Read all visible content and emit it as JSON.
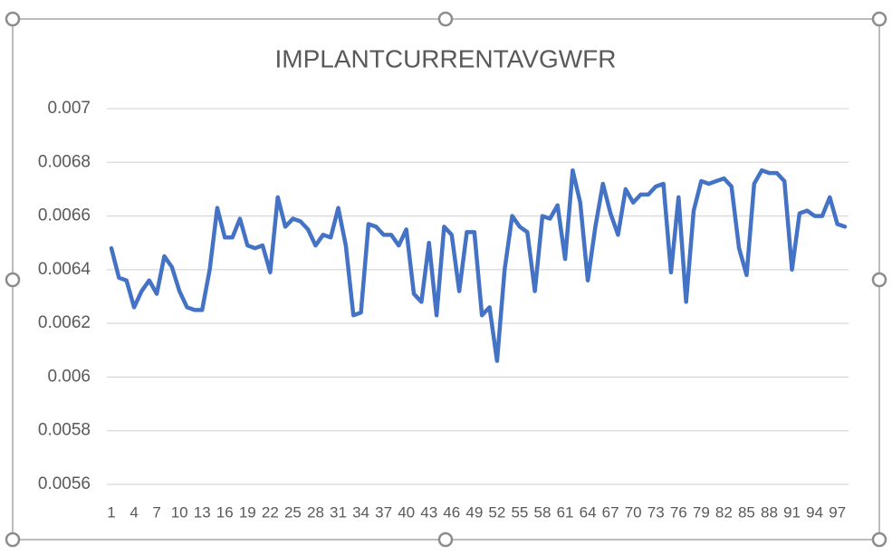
{
  "chart_data": {
    "type": "line",
    "title": "IMPLANTCURRENTAVGWFR",
    "categories": [
      1,
      null,
      null,
      4,
      null,
      null,
      7,
      null,
      null,
      10,
      null,
      null,
      13,
      null,
      null,
      16,
      null,
      null,
      19,
      null,
      null,
      22,
      null,
      null,
      25,
      null,
      null,
      28,
      null,
      null,
      31,
      null,
      null,
      34,
      null,
      null,
      37,
      null,
      null,
      40,
      null,
      null,
      43,
      null,
      null,
      46,
      null,
      null,
      49,
      null,
      null,
      52,
      null,
      null,
      55,
      null,
      null,
      58,
      null,
      null,
      61,
      null,
      null,
      64,
      null,
      null,
      67,
      null,
      null,
      70,
      null,
      null,
      73,
      null,
      null,
      76,
      null,
      null,
      79,
      null,
      null,
      82,
      null,
      null,
      85,
      null,
      null,
      88,
      null,
      null,
      91,
      null,
      null,
      94,
      null,
      null,
      97,
      null
    ],
    "series": [
      {
        "name": "IMPLANTCURRENTAVGWFR",
        "color": "#4472c4",
        "values": [
          0.00648,
          0.00637,
          0.00636,
          0.00626,
          0.00632,
          0.00636,
          0.00631,
          0.00645,
          0.00641,
          0.00632,
          0.00626,
          0.00625,
          0.00625,
          0.0064,
          0.00663,
          0.00652,
          0.00652,
          0.00659,
          0.00649,
          0.00648,
          0.00649,
          0.00639,
          0.00667,
          0.00656,
          0.00659,
          0.00658,
          0.00655,
          0.00649,
          0.00653,
          0.00652,
          0.00663,
          0.00649,
          0.00623,
          0.00624,
          0.00657,
          0.00656,
          0.00653,
          0.00653,
          0.00649,
          0.00655,
          0.00631,
          0.00628,
          0.0065,
          0.00623,
          0.00656,
          0.00653,
          0.00632,
          0.00654,
          0.00654,
          0.00623,
          0.00626,
          0.00606,
          0.0064,
          0.0066,
          0.00656,
          0.00654,
          0.00632,
          0.0066,
          0.00659,
          0.00664,
          0.00644,
          0.00677,
          0.00665,
          0.00636,
          0.00656,
          0.00672,
          0.00661,
          0.00653,
          0.0067,
          0.00665,
          0.00668,
          0.00668,
          0.00671,
          0.00672,
          0.00639,
          0.00667,
          0.00628,
          0.00662,
          0.00673,
          0.00672,
          0.00673,
          0.00674,
          0.00671,
          0.00648,
          0.00638,
          0.00672,
          0.00677,
          0.00676,
          0.00676,
          0.00673,
          0.0064,
          0.00661,
          0.00662,
          0.0066,
          0.0066,
          0.00667,
          0.00657,
          0.00656
        ]
      }
    ],
    "ylim": [
      0.0056,
      0.007
    ],
    "yticks": [
      0.0056,
      0.0058,
      0.006,
      0.0062,
      0.0064,
      0.0066,
      0.0068,
      0.007
    ],
    "grid": true
  }
}
